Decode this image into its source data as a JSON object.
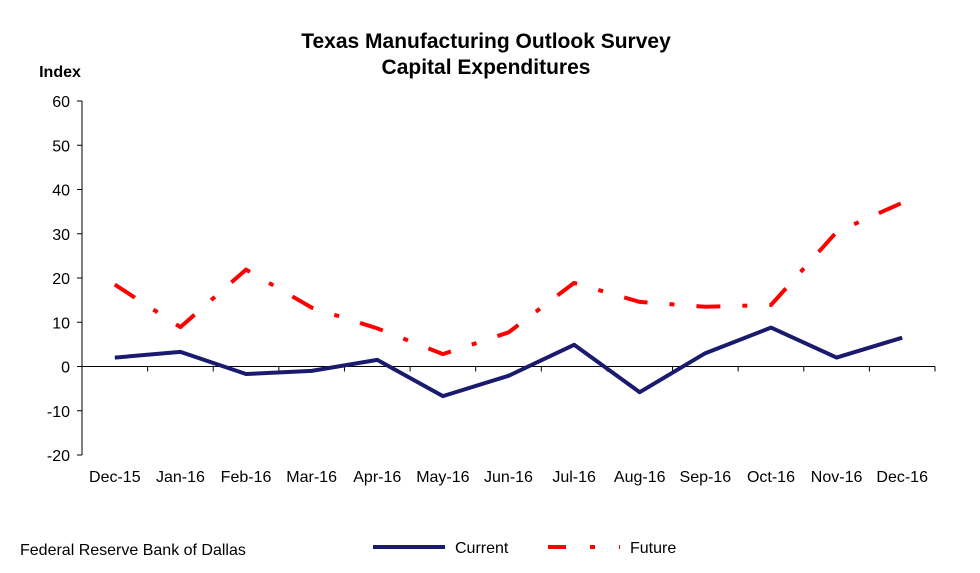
{
  "source": "Federal Reserve Bank of Dallas",
  "chart_data": {
    "type": "line",
    "title": "Texas Manufacturing Outlook Survey",
    "subtitle": "Capital Expenditures",
    "ylabel": "Index",
    "xlabel": "",
    "ylim": [
      -20,
      60
    ],
    "yticks": [
      -20,
      -10,
      0,
      10,
      20,
      30,
      40,
      50,
      60
    ],
    "grid": false,
    "legend_position": "bottom",
    "categories": [
      "Dec-15",
      "Jan-16",
      "Feb-16",
      "Mar-16",
      "Apr-16",
      "May-16",
      "Jun-16",
      "Jul-16",
      "Aug-16",
      "Sep-16",
      "Oct-16",
      "Nov-16",
      "Dec-16"
    ],
    "series": [
      {
        "name": "Current",
        "color": "#1a1a6e",
        "style": "solid",
        "values": [
          2.0,
          3.3,
          -1.7,
          -1.0,
          1.5,
          -6.7,
          -2.1,
          4.9,
          -5.8,
          3.0,
          8.8,
          2.0,
          6.5
        ]
      },
      {
        "name": "Future",
        "color": "#ff0000",
        "style": "dash-dot",
        "values": [
          18.5,
          8.9,
          21.9,
          13.3,
          8.6,
          2.8,
          7.7,
          18.9,
          14.6,
          13.5,
          13.9,
          30.4,
          37.0
        ]
      }
    ]
  }
}
